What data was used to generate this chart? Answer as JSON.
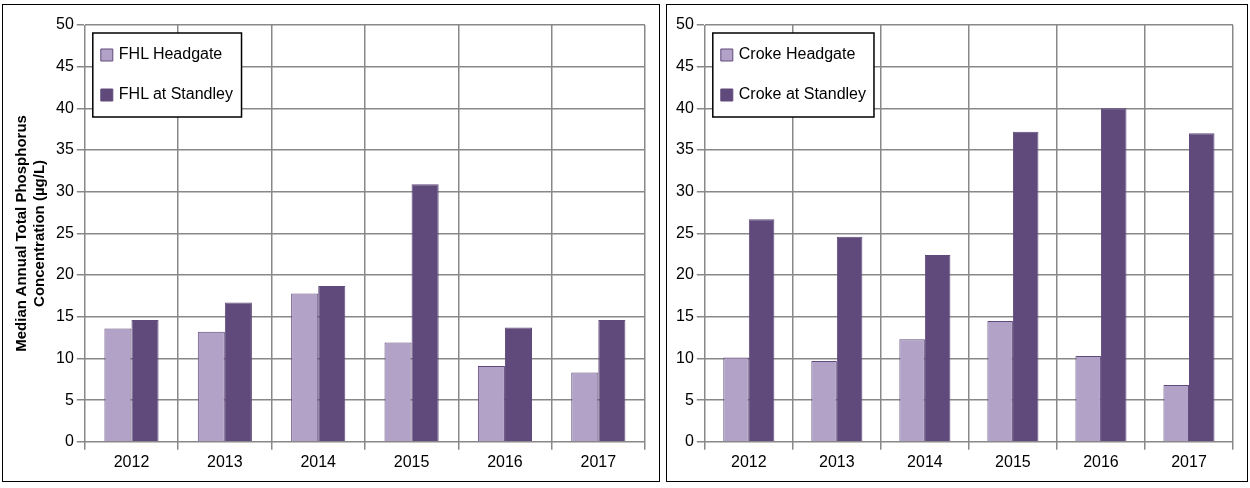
{
  "chart_data": [
    {
      "type": "bar",
      "ylabel": "Median Annual Total Phosphorus Concentration (µg/L)",
      "categories": [
        "2012",
        "2013",
        "2014",
        "2015",
        "2016",
        "2017"
      ],
      "series": [
        {
          "name": "FHL Headgate",
          "color": "#b3a2c7",
          "values": [
            13.6,
            13.2,
            17.8,
            11.9,
            9.1,
            8.3
          ]
        },
        {
          "name": "FHL at Standley",
          "color": "#604a7b",
          "values": [
            14.6,
            16.7,
            18.7,
            30.9,
            13.7,
            14.6
          ]
        }
      ],
      "ylim": [
        0,
        50
      ],
      "yticks": [
        0,
        5,
        10,
        15,
        20,
        25,
        30,
        35,
        40,
        45,
        50
      ],
      "grid": true,
      "legend": "top left"
    },
    {
      "type": "bar",
      "categories": [
        "2012",
        "2013",
        "2014",
        "2015",
        "2016",
        "2017"
      ],
      "series": [
        {
          "name": "Croke Headgate",
          "color": "#b3a2c7",
          "values": [
            10.1,
            9.7,
            12.3,
            14.5,
            10.3,
            6.8
          ]
        },
        {
          "name": "Croke at Standley",
          "color": "#604a7b",
          "values": [
            26.7,
            24.6,
            22.4,
            37.2,
            40.0,
            37.0
          ]
        }
      ],
      "ylim": [
        0,
        50
      ],
      "yticks": [
        0,
        5,
        10,
        15,
        20,
        25,
        30,
        35,
        40,
        45,
        50
      ],
      "grid": true,
      "legend": "top left"
    }
  ]
}
